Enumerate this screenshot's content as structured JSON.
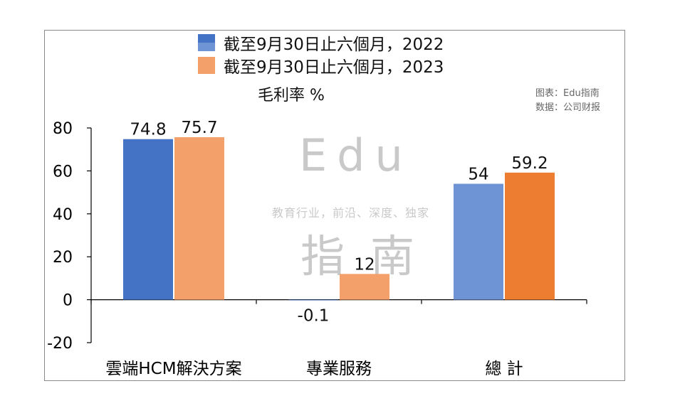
{
  "watermark": {
    "line1": "Edu",
    "tagline": "教育行业，前沿、深度、独家",
    "line2a": "指",
    "line2b": "南"
  },
  "source": {
    "chart_by": "图表：Edu指南",
    "data_from": "数据：公司财报"
  },
  "colors": {
    "series_2022": "#4472C4",
    "series_2022_light": "#6E94D6",
    "series_2023": "#F4A06A",
    "series_2023_dark": "#ED7D31",
    "axis": "#000000"
  },
  "chart_data": {
    "type": "bar",
    "title": "毛利率 %",
    "categories": [
      "雲端HCM解決方案",
      "專業服務",
      "總 計"
    ],
    "series": [
      {
        "name": "截至9月30日止六個月，2022",
        "values": [
          74.8,
          -0.1,
          54
        ],
        "labels": [
          "74.8",
          "-0.1",
          "54"
        ]
      },
      {
        "name": "截至9月30日止六個月，2023",
        "values": [
          75.7,
          12,
          59.2
        ],
        "labels": [
          "75.7",
          "12",
          "59.2"
        ]
      }
    ],
    "yticks": [
      "-20",
      "0",
      "20",
      "40",
      "60",
      "80"
    ],
    "ylim": [
      -20,
      80
    ],
    "grid": false,
    "legend": "top-center",
    "xlabel": "",
    "ylabel": ""
  }
}
